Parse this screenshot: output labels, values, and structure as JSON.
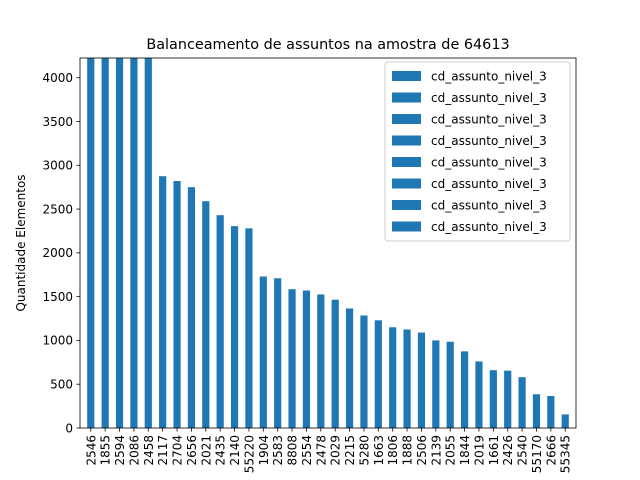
{
  "chart_data": {
    "type": "bar",
    "title": "Balanceamento de assuntos na amostra de 64613",
    "xlabel": "",
    "ylabel": "Quantidade Elementos",
    "ylim": [
      0,
      4225
    ],
    "yticks": [
      0,
      500,
      1000,
      1500,
      2000,
      2500,
      3000,
      3500,
      4000
    ],
    "grid": false,
    "legend_position": "upper-right",
    "bar_color": "#1f77b4",
    "categories": [
      "2546",
      "1855",
      "2594",
      "2086",
      "2458",
      "2117",
      "2704",
      "2656",
      "2021",
      "2435",
      "2140",
      "55220",
      "1904",
      "2583",
      "8808",
      "2554",
      "2478",
      "2029",
      "2215",
      "5280",
      "1663",
      "1806",
      "1888",
      "2506",
      "2139",
      "2055",
      "1844",
      "2019",
      "1661",
      "2426",
      "2540",
      "55170",
      "2666",
      "55345"
    ],
    "values": [
      4225,
      4225,
      4225,
      4225,
      4225,
      2875,
      2820,
      2750,
      2590,
      2430,
      2305,
      2280,
      1730,
      1710,
      1585,
      1570,
      1525,
      1465,
      1365,
      1285,
      1230,
      1150,
      1125,
      1090,
      1000,
      985,
      875,
      760,
      660,
      655,
      580,
      385,
      365,
      155
    ],
    "legend": [
      "cd_assunto_nivel_3",
      "cd_assunto_nivel_3",
      "cd_assunto_nivel_3",
      "cd_assunto_nivel_3",
      "cd_assunto_nivel_3",
      "cd_assunto_nivel_3",
      "cd_assunto_nivel_3",
      "cd_assunto_nivel_3"
    ]
  }
}
